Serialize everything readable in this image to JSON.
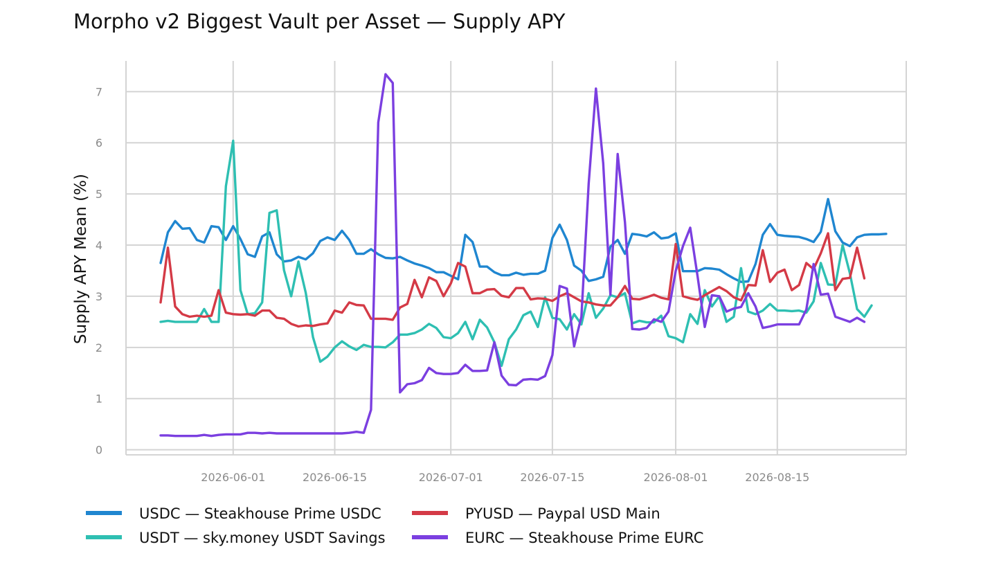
{
  "chart_data": {
    "type": "line",
    "title": "Morpho v2 Biggest Vault per Asset — Supply APY",
    "xlabel": "",
    "ylabel": "Supply APY Mean (%)",
    "x_start": "2026-05-22",
    "x_end": "2026-08-28",
    "ylim": [
      -0.1,
      7.6
    ],
    "y_ticks": [
      0,
      1,
      2,
      3,
      4,
      5,
      6,
      7
    ],
    "x_ticks": [
      "2026-06-01",
      "2026-06-15",
      "2026-07-01",
      "2026-07-15",
      "2026-08-01",
      "2026-08-15"
    ],
    "grid": true,
    "legend_position": "bottom",
    "series": [
      {
        "name": "USDC — Steakhouse Prime USDC",
        "color": "#1f86d0",
        "values": [
          3.65,
          4.25,
          4.47,
          4.32,
          4.33,
          4.1,
          4.05,
          4.37,
          4.35,
          4.1,
          4.37,
          4.12,
          3.82,
          3.77,
          4.17,
          4.25,
          3.82,
          3.68,
          3.7,
          3.77,
          3.72,
          3.84,
          4.08,
          4.15,
          4.1,
          4.28,
          4.1,
          3.83,
          3.83,
          3.92,
          3.82,
          3.75,
          3.74,
          3.77,
          3.7,
          3.64,
          3.6,
          3.55,
          3.47,
          3.47,
          3.4,
          3.33,
          4.2,
          4.06,
          3.58,
          3.58,
          3.47,
          3.41,
          3.41,
          3.46,
          3.42,
          3.44,
          3.44,
          3.5,
          4.14,
          4.4,
          4.1,
          3.6,
          3.5,
          3.3,
          3.33,
          3.38,
          3.97,
          4.1,
          3.83,
          4.22,
          4.2,
          4.17,
          4.25,
          4.13,
          4.15,
          4.23,
          3.49,
          3.49,
          3.49,
          3.55,
          3.54,
          3.52,
          3.43,
          3.35,
          3.28,
          3.29,
          3.63,
          4.2,
          4.41,
          4.2,
          4.18,
          4.17,
          4.16,
          4.12,
          4.06,
          4.26,
          4.9,
          4.27,
          4.05,
          3.98,
          4.15,
          4.2,
          4.21,
          4.21,
          4.22
        ]
      },
      {
        "name": "USDT — sky.money USDT Savings",
        "color": "#2ebfb2",
        "values": [
          2.5,
          2.52,
          2.5,
          2.5,
          2.5,
          2.5,
          2.75,
          2.5,
          2.5,
          5.15,
          6.04,
          3.12,
          2.65,
          2.67,
          2.88,
          4.63,
          4.68,
          3.51,
          3.0,
          3.68,
          3.07,
          2.2,
          1.72,
          1.82,
          2.0,
          2.12,
          2.02,
          1.95,
          2.05,
          2.01,
          2.01,
          2.0,
          2.1,
          2.25,
          2.25,
          2.28,
          2.35,
          2.46,
          2.38,
          2.2,
          2.18,
          2.28,
          2.5,
          2.16,
          2.54,
          2.39,
          2.1,
          1.64,
          2.16,
          2.35,
          2.63,
          2.7,
          2.4,
          2.98,
          2.58,
          2.55,
          2.35,
          2.65,
          2.45,
          3.06,
          2.58,
          2.76,
          3.02,
          2.98,
          3.06,
          2.47,
          2.52,
          2.49,
          2.49,
          2.62,
          2.22,
          2.18,
          2.1,
          2.65,
          2.46,
          3.12,
          2.8,
          3.0,
          2.5,
          2.6,
          3.55,
          2.7,
          2.65,
          2.72,
          2.85,
          2.72,
          2.72,
          2.71,
          2.72,
          2.68,
          2.9,
          3.65,
          3.23,
          3.22,
          4.0,
          3.45,
          2.75,
          2.6,
          2.82
        ]
      },
      {
        "name": "PYUSD — Paypal USD Main",
        "color": "#d43a46",
        "values": [
          2.88,
          3.95,
          2.8,
          2.65,
          2.6,
          2.62,
          2.6,
          2.62,
          3.12,
          2.68,
          2.65,
          2.64,
          2.65,
          2.62,
          2.72,
          2.72,
          2.58,
          2.56,
          2.46,
          2.41,
          2.43,
          2.42,
          2.45,
          2.47,
          2.72,
          2.68,
          2.88,
          2.83,
          2.82,
          2.56,
          2.56,
          2.56,
          2.54,
          2.78,
          2.85,
          3.32,
          2.98,
          3.37,
          3.3,
          3.0,
          3.25,
          3.65,
          3.58,
          3.06,
          3.06,
          3.13,
          3.14,
          3.01,
          2.98,
          3.16,
          3.16,
          2.94,
          2.96,
          2.95,
          2.91,
          3.0,
          3.06,
          2.98,
          2.9,
          2.88,
          2.84,
          2.82,
          2.82,
          2.98,
          3.2,
          2.95,
          2.94,
          2.98,
          3.03,
          2.97,
          2.94,
          4.02,
          3.0,
          2.96,
          2.93,
          3.02,
          3.1,
          3.18,
          3.1,
          2.98,
          2.92,
          3.22,
          3.21,
          3.9,
          3.28,
          3.46,
          3.52,
          3.12,
          3.22,
          3.65,
          3.53,
          3.84,
          4.23,
          3.12,
          3.34,
          3.36,
          3.95,
          3.35
        ]
      },
      {
        "name": "EURC — Steakhouse Prime EURC",
        "color": "#7b3fe0",
        "values": [
          0.28,
          0.28,
          0.27,
          0.27,
          0.27,
          0.27,
          0.29,
          0.27,
          0.29,
          0.3,
          0.3,
          0.3,
          0.33,
          0.33,
          0.32,
          0.33,
          0.32,
          0.32,
          0.32,
          0.32,
          0.32,
          0.32,
          0.32,
          0.32,
          0.32,
          0.32,
          0.33,
          0.35,
          0.33,
          0.78,
          6.4,
          7.34,
          7.17,
          1.12,
          1.28,
          1.3,
          1.36,
          1.6,
          1.5,
          1.48,
          1.48,
          1.5,
          1.66,
          1.54,
          1.54,
          1.55,
          2.1,
          1.45,
          1.27,
          1.26,
          1.37,
          1.38,
          1.37,
          1.44,
          1.85,
          3.2,
          3.15,
          2.02,
          2.6,
          5.2,
          7.06,
          5.6,
          3.03,
          5.78,
          4.45,
          2.36,
          2.35,
          2.38,
          2.55,
          2.5,
          2.7,
          3.5,
          3.98,
          4.34,
          3.4,
          2.4,
          3.02,
          3.0,
          2.7,
          2.76,
          2.79,
          3.06,
          2.8,
          2.38,
          2.41,
          2.45,
          2.45,
          2.45,
          2.45,
          2.74,
          3.63,
          3.03,
          3.05,
          2.6,
          2.55,
          2.5,
          2.58,
          2.5
        ]
      }
    ]
  }
}
